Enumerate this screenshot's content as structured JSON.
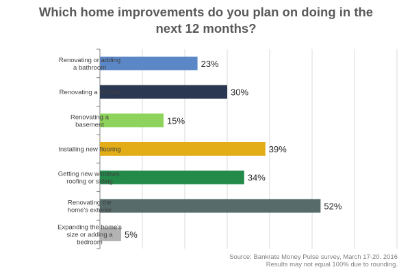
{
  "title_lines": [
    "Which home improvements do you plan on doing in the",
    "next 12 months?"
  ],
  "source_lines": [
    "Source: Bankrate Money Pulse survey, March 17-20, 2016",
    "Results may not equal 100% due to rounding."
  ],
  "colors": {
    "bathroom": "#5b87c6",
    "kitchen": "#2b3852",
    "basement": "#8ed35c",
    "flooring": "#e3ad17",
    "windows": "#238a4a",
    "exterior": "#576b6b",
    "expanding": "#b3b3b3",
    "grid": "#d9d9d9",
    "axis": "#7f7f7f"
  },
  "chart_data": {
    "type": "bar",
    "orientation": "horizontal",
    "title": "Which home improvements do you plan on doing in the next 12 months?",
    "categories": [
      [
        "Renovating or adding",
        "a bathroom"
      ],
      [
        "Renovating a kitchen"
      ],
      [
        "Renovating a",
        "basement"
      ],
      [
        "Installing new flooring"
      ],
      [
        "Getting new windows,",
        "roofing or siding"
      ],
      [
        "Renovating the",
        "home's exterior"
      ],
      [
        "Expanding the home's",
        "size or adding a",
        "bedroom"
      ]
    ],
    "values": [
      23,
      30,
      15,
      39,
      34,
      52,
      5
    ],
    "value_labels": [
      "23%",
      "30%",
      "15%",
      "39%",
      "34%",
      "52%",
      "5%"
    ],
    "bar_colors": [
      "#5b87c6",
      "#2b3852",
      "#8ed35c",
      "#e3ad17",
      "#238a4a",
      "#576b6b",
      "#b3b3b3"
    ],
    "xlim": [
      0,
      70
    ],
    "grid": true,
    "legend": "none"
  }
}
